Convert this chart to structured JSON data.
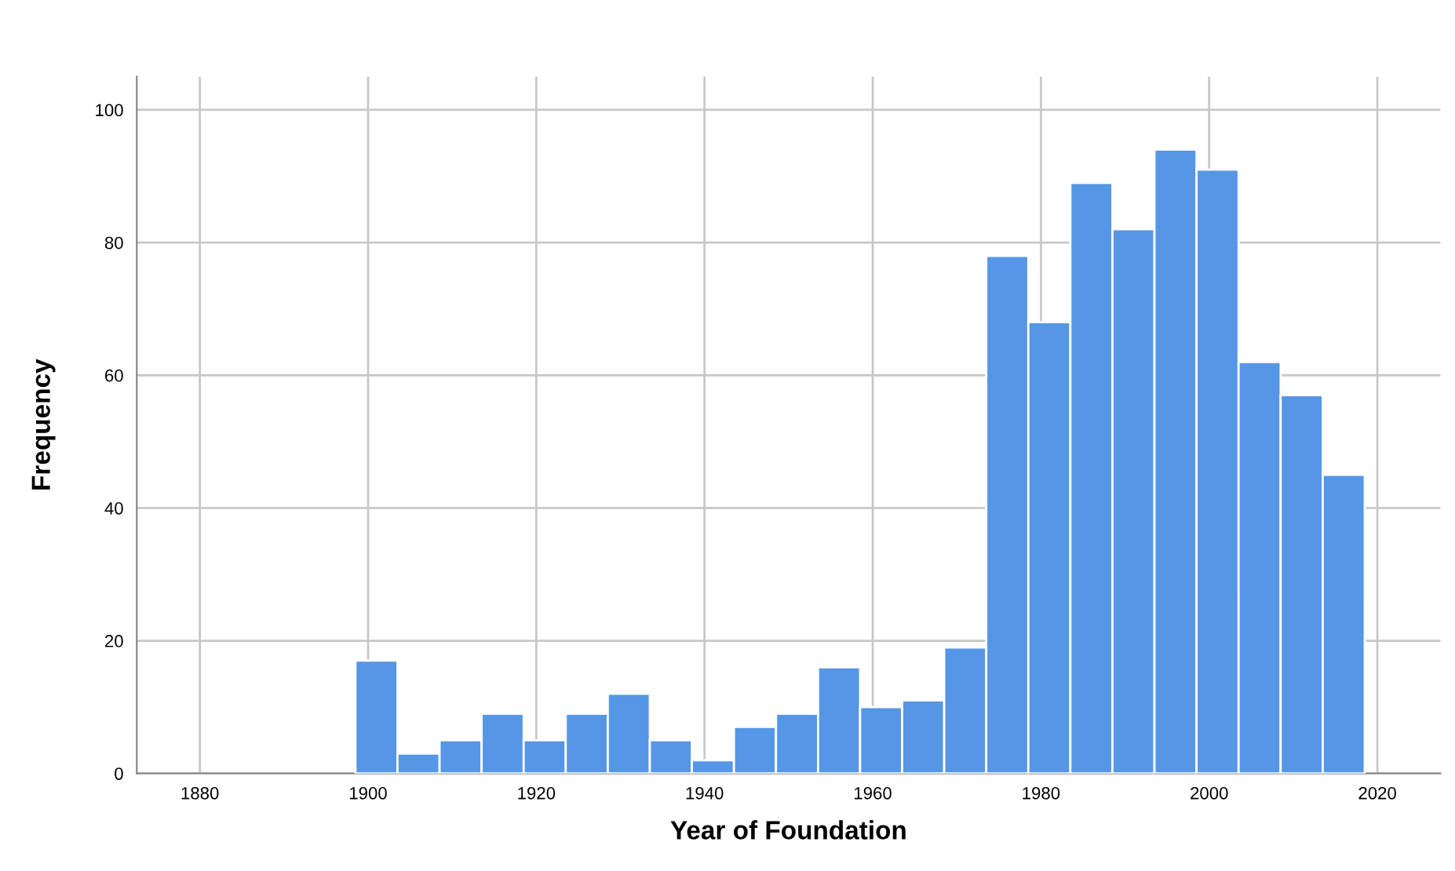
{
  "chart_data": {
    "type": "histogram",
    "xlabel": "Year of Foundation",
    "ylabel": "Frequency",
    "bins": [
      1898.5,
      1903.5,
      1908.5,
      1913.5,
      1918.5,
      1923.5,
      1928.5,
      1933.5,
      1938.5,
      1943.5,
      1948.5,
      1953.5,
      1958.5,
      1963.5,
      1968.5,
      1973.5,
      1978.5,
      1983.5,
      1988.5,
      1993.5,
      1998.5,
      2003.5,
      2008.5,
      2013.5,
      2018.5
    ],
    "values": [
      17,
      3,
      5,
      9,
      5,
      9,
      12,
      5,
      2,
      7,
      9,
      16,
      10,
      11,
      19,
      78,
      68,
      89,
      82,
      94,
      91,
      62,
      57,
      45
    ],
    "color": "#5596e6",
    "xlim": [
      1872.5,
      2027.5
    ],
    "ylim": [
      0,
      105
    ],
    "xticks": [
      1880,
      1900,
      1920,
      1940,
      1960,
      1980,
      2000,
      2020
    ],
    "yticks": [
      0,
      20,
      40,
      60,
      80,
      100
    ],
    "grid": true
  }
}
